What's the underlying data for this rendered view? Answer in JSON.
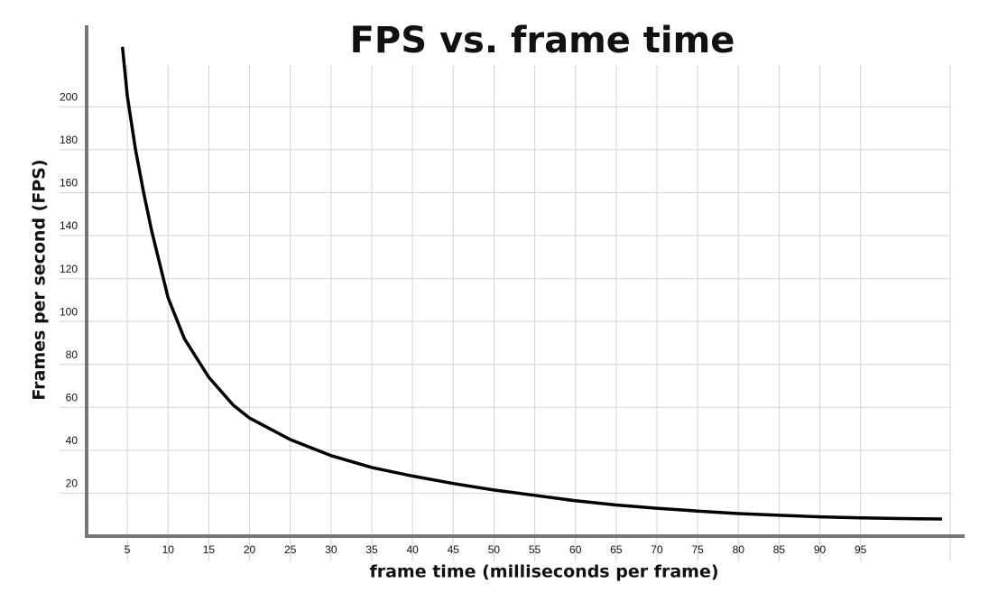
{
  "chart_data": {
    "type": "line",
    "title": "FPS vs. frame time",
    "x_label": "frame time (milliseconds per frame)",
    "y_label": "Frames per second (FPS)",
    "x": [
      4.4,
      5,
      6,
      7,
      8,
      10,
      12,
      15,
      18,
      20,
      25,
      30,
      35,
      40,
      45,
      50,
      55,
      60,
      65,
      70,
      75,
      80,
      85,
      90,
      95,
      100,
      105
    ],
    "series": [
      {
        "name": "FPS",
        "color": "#000000",
        "values": [
          228,
          205,
          180,
          160,
          142,
          111,
          92,
          74,
          61,
          55,
          45,
          37.5,
          32,
          28,
          24.5,
          21.5,
          19,
          16.5,
          14.5,
          13,
          11.7,
          10.5,
          9.7,
          9,
          8.5,
          8.2,
          8
        ]
      }
    ],
    "xlim": [
      0,
      106
    ],
    "ylim": [
      0,
      238
    ],
    "xticks": [
      5,
      10,
      15,
      20,
      25,
      30,
      35,
      40,
      45,
      50,
      55,
      60,
      65,
      70,
      75,
      80,
      85,
      90,
      95
    ],
    "yticks": [
      20,
      40,
      60,
      80,
      100,
      120,
      140,
      160,
      180,
      200
    ],
    "grid": true
  }
}
